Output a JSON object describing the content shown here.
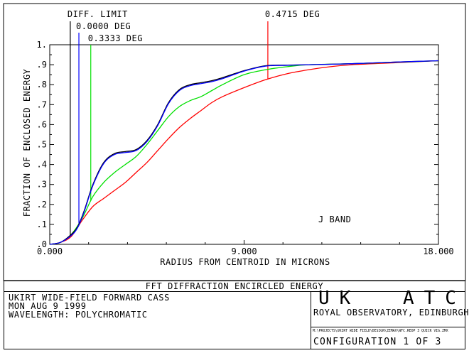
{
  "chart_data": {
    "type": "line",
    "title": "FFT DIFFRACTION ENCIRCLED ENERGY",
    "xlabel": "RADIUS FROM CENTROID IN MICRONS",
    "ylabel": "FRACTION OF ENCLOSED ENERGY",
    "xlim": [
      0,
      18
    ],
    "ylim": [
      0,
      1
    ],
    "x_ticks": [
      "0.000",
      "9.000",
      "18.000"
    ],
    "y_ticks": [
      ".0",
      ".1",
      ".2",
      ".3",
      ".4",
      ".5",
      ".6",
      ".7",
      ".8",
      ".9",
      "1."
    ],
    "annotation": "J BAND",
    "grid": false,
    "series": [
      {
        "name": "DIFF. LIMIT",
        "color": "#000000",
        "x": [
          0,
          0.5,
          1.0,
          1.3,
          1.6,
          2.0,
          2.5,
          3.0,
          3.5,
          4.0,
          4.5,
          5.0,
          5.5,
          6.0,
          6.5,
          7.0,
          7.5,
          8.0,
          9.0,
          10.0,
          11.0,
          12.0,
          14.0,
          16.0,
          18.0
        ],
        "y": [
          0,
          0.01,
          0.05,
          0.09,
          0.17,
          0.3,
          0.41,
          0.455,
          0.465,
          0.475,
          0.52,
          0.6,
          0.71,
          0.775,
          0.8,
          0.81,
          0.82,
          0.835,
          0.87,
          0.895,
          0.898,
          0.9,
          0.905,
          0.913,
          0.92
        ]
      },
      {
        "name": "0.0000 DEG",
        "color": "#0000ff",
        "x": [
          0,
          0.5,
          1.0,
          1.3,
          1.6,
          2.0,
          2.5,
          3.0,
          3.5,
          4.0,
          4.5,
          5.0,
          5.5,
          6.0,
          6.5,
          7.0,
          7.5,
          8.0,
          9.0,
          10.0,
          11.0,
          12.0,
          14.0,
          16.0,
          18.0
        ],
        "y": [
          0,
          0.01,
          0.045,
          0.085,
          0.165,
          0.295,
          0.405,
          0.45,
          0.46,
          0.47,
          0.515,
          0.595,
          0.705,
          0.77,
          0.795,
          0.805,
          0.815,
          0.83,
          0.868,
          0.893,
          0.897,
          0.9,
          0.905,
          0.913,
          0.92
        ]
      },
      {
        "name": "0.3333 DEG",
        "color": "#00e000",
        "x": [
          0,
          0.5,
          1.0,
          1.5,
          2.0,
          2.5,
          3.0,
          3.5,
          4.0,
          4.5,
          5.0,
          5.5,
          6.0,
          6.5,
          7.0,
          7.5,
          8.0,
          9.0,
          10.0,
          11.0,
          12.0,
          14.0,
          16.0,
          18.0
        ],
        "y": [
          0,
          0.01,
          0.05,
          0.13,
          0.24,
          0.31,
          0.36,
          0.4,
          0.44,
          0.5,
          0.57,
          0.64,
          0.69,
          0.72,
          0.74,
          0.77,
          0.8,
          0.85,
          0.875,
          0.89,
          0.9,
          0.905,
          0.912,
          0.92
        ]
      },
      {
        "name": "0.4715 DEG",
        "color": "#ff0000",
        "x": [
          0,
          0.5,
          1.0,
          1.5,
          2.0,
          2.5,
          3.0,
          3.5,
          4.0,
          4.5,
          5.0,
          5.5,
          6.0,
          6.5,
          7.0,
          7.5,
          8.0,
          9.0,
          10.0,
          11.0,
          12.0,
          13.0,
          14.0,
          16.0,
          18.0
        ],
        "y": [
          0,
          0.01,
          0.04,
          0.12,
          0.19,
          0.23,
          0.27,
          0.31,
          0.36,
          0.41,
          0.47,
          0.53,
          0.585,
          0.63,
          0.67,
          0.71,
          0.74,
          0.785,
          0.825,
          0.855,
          0.875,
          0.89,
          0.9,
          0.91,
          0.92
        ]
      }
    ],
    "field_markers": [
      {
        "label": "DIFF. LIMIT",
        "x": 0.95,
        "color": "#000000"
      },
      {
        "label": "0.0000 DEG",
        "x": 1.35,
        "color": "#0000ff"
      },
      {
        "label": "0.3333 DEG",
        "x": 1.9,
        "color": "#00e000"
      },
      {
        "label": "0.4715 DEG",
        "x": 10.1,
        "color": "#ff0000"
      }
    ]
  },
  "footer": {
    "title": "FFT DIFFRACTION ENCIRCLED ENERGY",
    "lines": [
      "UKIRT WIDE-FIELD FORWARD CASS",
      "MON AUG 9 1999",
      "WAVELENGTH: POLYCHROMATIC"
    ],
    "logo": "UK ATC",
    "org": "ROYAL OBSERVATORY, EDINBURGH",
    "file_path": "M:\\PROJECTS\\UKIRT WIDE FIELD\\DESIGN\\ZEMAX\\WFC.REOP 3 QUICK VIG.ZMX",
    "configuration": "CONFIGURATION 1 OF 3"
  }
}
